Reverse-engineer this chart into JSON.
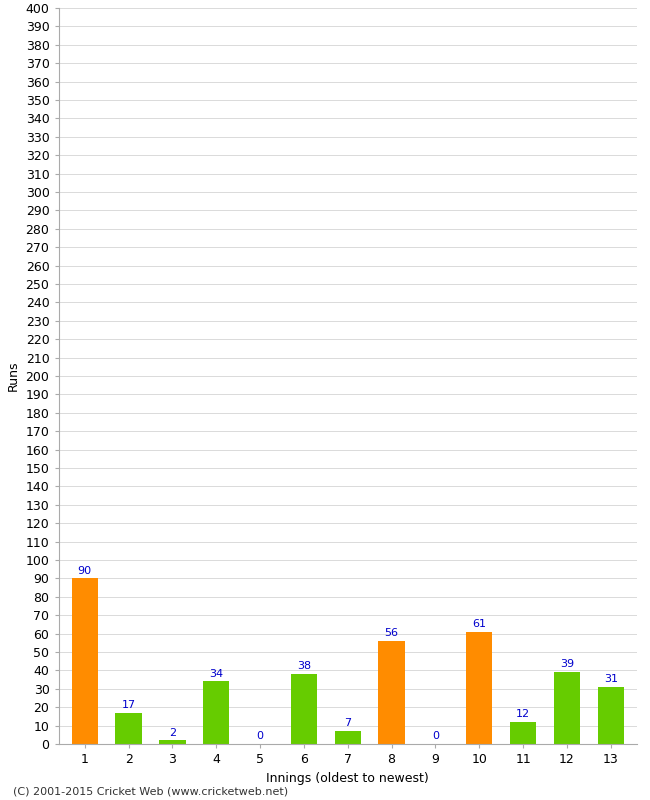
{
  "xlabel": "Innings (oldest to newest)",
  "ylabel": "Runs",
  "categories": [
    1,
    2,
    3,
    4,
    5,
    6,
    7,
    8,
    9,
    10,
    11,
    12,
    13
  ],
  "values": [
    90,
    17,
    2,
    34,
    0,
    38,
    7,
    56,
    0,
    61,
    12,
    39,
    31
  ],
  "bar_colors": [
    "#ff8c00",
    "#66cc00",
    "#66cc00",
    "#66cc00",
    "#66cc00",
    "#66cc00",
    "#66cc00",
    "#ff8c00",
    "#66cc00",
    "#ff8c00",
    "#66cc00",
    "#66cc00",
    "#66cc00"
  ],
  "ylim": [
    0,
    400
  ],
  "label_color": "#0000cc",
  "grid_color": "#cccccc",
  "footer": "(C) 2001-2015 Cricket Web (www.cricketweb.net)",
  "background_color": "#ffffff",
  "axis_fontsize": 9,
  "label_fontsize": 8,
  "footer_fontsize": 8,
  "bar_width": 0.6
}
